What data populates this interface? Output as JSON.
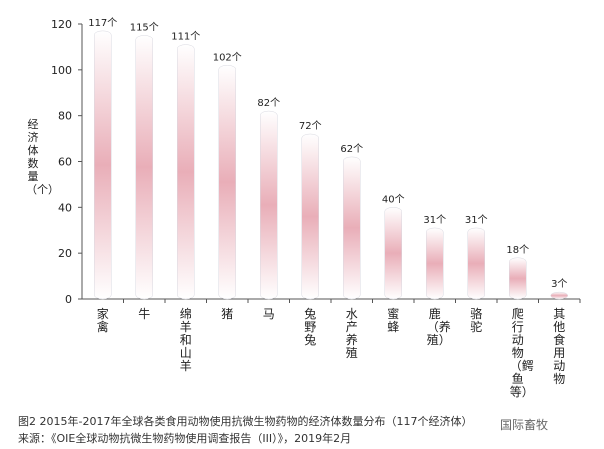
{
  "chart_data": {
    "type": "bar",
    "ylabel": "经济体数量（个）",
    "ylim": [
      0,
      120
    ],
    "yticks": [
      0,
      20,
      40,
      60,
      80,
      100,
      120
    ],
    "categories": [
      "家禽",
      "牛",
      "绵羊和山羊",
      "猪",
      "马",
      "兔野兔",
      "水产养殖",
      "蜜蜂",
      "鹿（养殖）",
      "骆驼",
      "爬行动物（鳄鱼等）",
      "其他食用动物"
    ],
    "values": [
      117,
      115,
      111,
      102,
      82,
      72,
      62,
      40,
      31,
      31,
      18,
      3
    ],
    "data_labels": [
      "117个",
      "115个",
      "111个",
      "102个",
      "82个",
      "72个",
      "62个",
      "40个",
      "31个",
      "31个",
      "18个",
      "3个"
    ],
    "grid": false,
    "bar_gradient": {
      "top": "#ffffff",
      "middle": "#e9aeb8",
      "bottom": "#ffffff"
    }
  },
  "caption": {
    "line1": "图2 2015年-2017年全球各类食用动物使用抗微生物药物的经济体数量分布（117个经济体）",
    "line2": "来源：《OIE全球动物抗微生物药物使用调查报告（III）》，2019年2月"
  },
  "watermark": "国际畜牧"
}
